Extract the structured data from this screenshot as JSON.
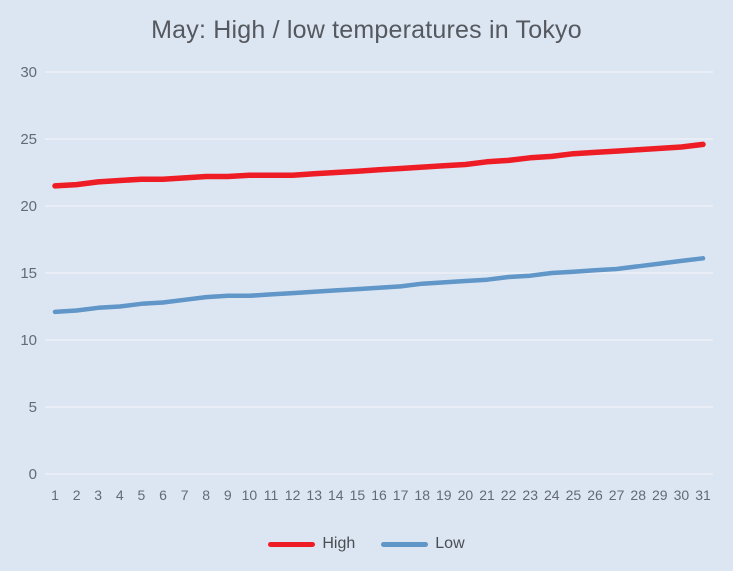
{
  "chart": {
    "title": "May: High / low temperatures in Tokyo",
    "colors": {
      "background": "#dce6f2",
      "grid": "#e9eef6",
      "axis_text": "#636a75",
      "title_text": "#55585e",
      "high": "#ee1c25",
      "low": "#6096c8"
    }
  },
  "chart_data": {
    "type": "line",
    "title": "May: High / low temperatures in Tokyo",
    "x": [
      1,
      2,
      3,
      4,
      5,
      6,
      7,
      8,
      9,
      10,
      11,
      12,
      13,
      14,
      15,
      16,
      17,
      18,
      19,
      20,
      21,
      22,
      23,
      24,
      25,
      26,
      27,
      28,
      29,
      30,
      31
    ],
    "series": [
      {
        "name": "High",
        "color": "#ee1c25",
        "values": [
          21.5,
          21.6,
          21.8,
          21.9,
          22.0,
          22.0,
          22.1,
          22.2,
          22.2,
          22.3,
          22.3,
          22.3,
          22.4,
          22.5,
          22.6,
          22.7,
          22.8,
          22.9,
          23.0,
          23.1,
          23.3,
          23.4,
          23.6,
          23.7,
          23.9,
          24.0,
          24.1,
          24.2,
          24.3,
          24.4,
          24.6
        ]
      },
      {
        "name": "Low",
        "color": "#6096c8",
        "values": [
          12.1,
          12.2,
          12.4,
          12.5,
          12.7,
          12.8,
          13.0,
          13.2,
          13.3,
          13.3,
          13.4,
          13.5,
          13.6,
          13.7,
          13.8,
          13.9,
          14.0,
          14.2,
          14.3,
          14.4,
          14.5,
          14.7,
          14.8,
          15.0,
          15.1,
          15.2,
          15.3,
          15.5,
          15.7,
          15.9,
          16.1
        ]
      }
    ],
    "xlabel": "",
    "ylabel": "",
    "ylim": [
      0,
      30
    ],
    "yticks": [
      0,
      5,
      10,
      15,
      20,
      25,
      30
    ],
    "grid": true,
    "legend_position": "bottom"
  }
}
